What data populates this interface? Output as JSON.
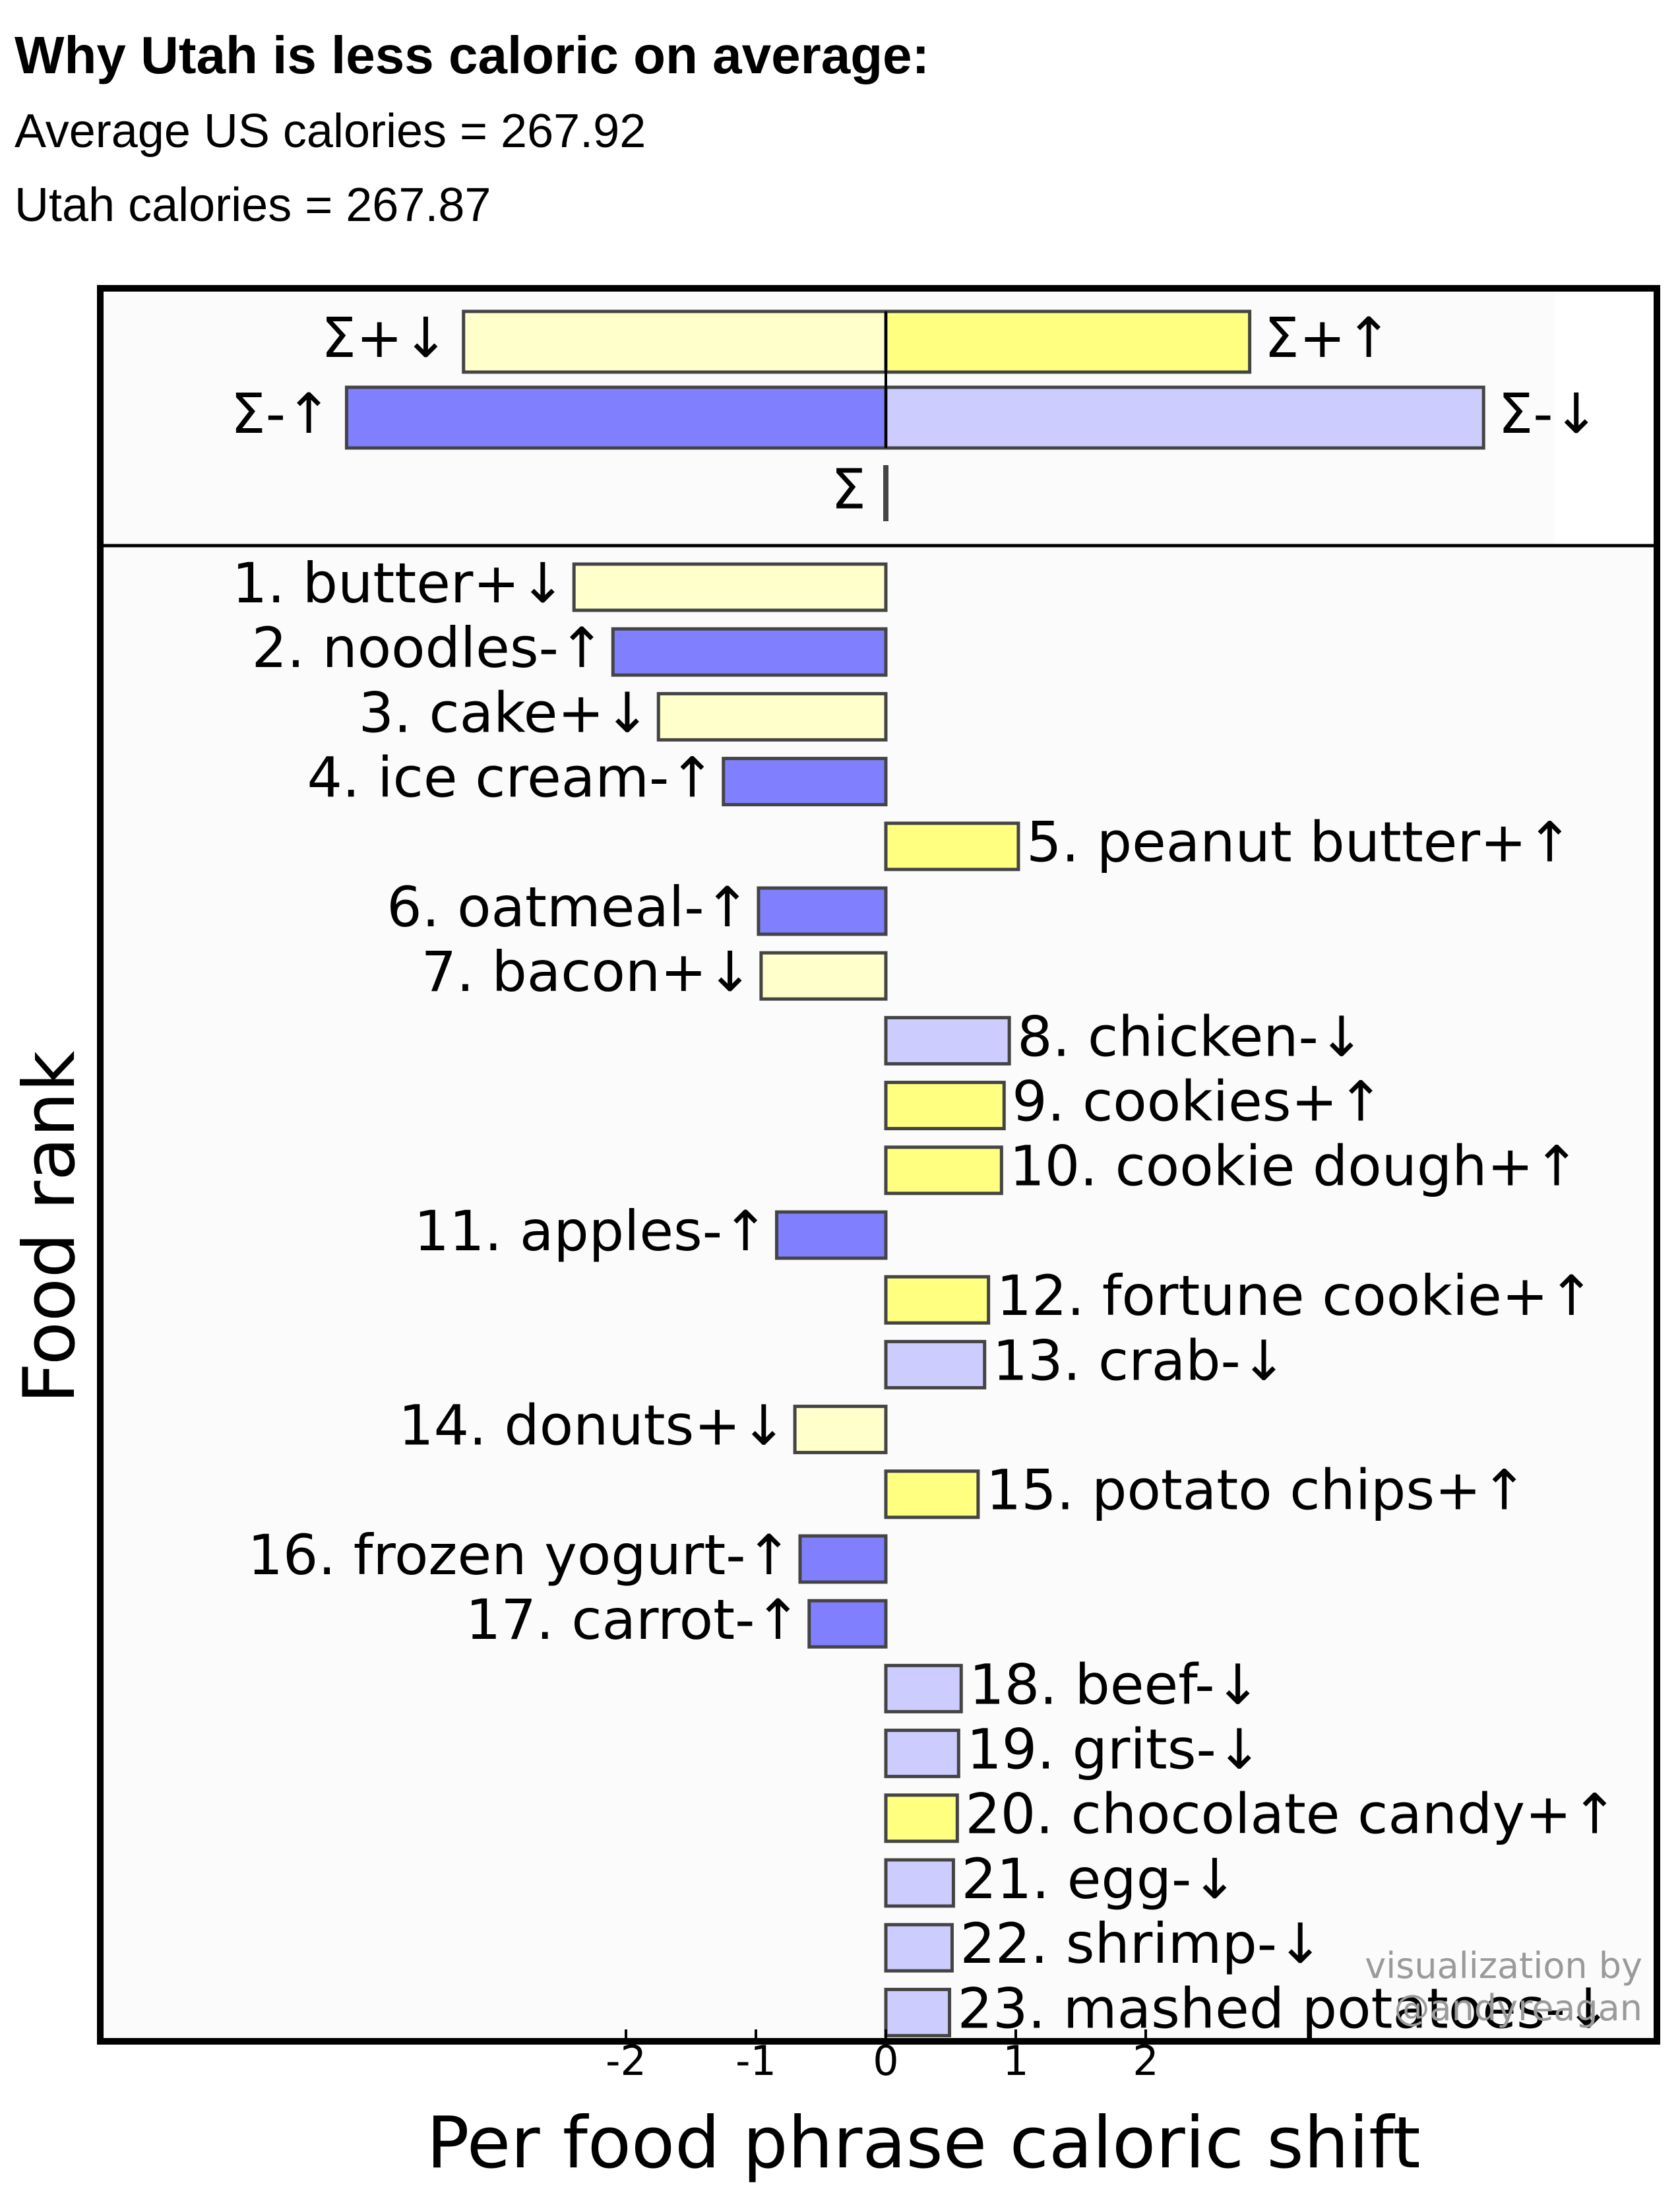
{
  "header": {
    "title": "Why Utah is less caloric on average:",
    "subtitle_us": "Average US calories = 267.92",
    "subtitle_utah": "Utah calories = 267.87"
  },
  "watermark": [
    "visualization by",
    "@andyreagan"
  ],
  "colors": {
    "plus_up": "#ffff80",
    "plus_down": "#ffffcc",
    "minus_up": "#8080ff",
    "minus_down": "#ccccff",
    "panel_bg": "#fbfbfb",
    "bar_stroke": "#444444"
  },
  "chart_data": [
    {
      "type": "bar",
      "orientation": "horizontal",
      "label": "summary",
      "series": [
        {
          "name": "Σ+↓",
          "value": -3.25,
          "row": 0
        },
        {
          "name": "Σ+↑",
          "value": 2.8,
          "row": 0
        },
        {
          "name": "Σ-↑",
          "value": -4.15,
          "row": 1
        },
        {
          "name": "Σ-↓",
          "value": 4.6,
          "row": 1
        },
        {
          "name": "Σ",
          "value": 0.0,
          "row": 2
        }
      ]
    },
    {
      "type": "bar",
      "orientation": "horizontal",
      "xlabel": "Per food phrase caloric shift",
      "ylabel": "Food rank",
      "xlim": [
        -3.1,
        4.1
      ],
      "xticks": [
        -2,
        -1,
        0,
        1,
        2
      ],
      "grid": false,
      "bars": [
        {
          "label": "1. butter+↓",
          "value": -2.4,
          "kind": "plus_down"
        },
        {
          "label": "2. noodles-↑",
          "value": -2.1,
          "kind": "minus_up"
        },
        {
          "label": "3. cake+↓",
          "value": -1.75,
          "kind": "plus_down"
        },
        {
          "label": "4. ice cream-↑",
          "value": -1.25,
          "kind": "minus_up"
        },
        {
          "label": "5. peanut butter+↑",
          "value": 1.02,
          "kind": "plus_up"
        },
        {
          "label": "6. oatmeal-↑",
          "value": -0.98,
          "kind": "minus_up"
        },
        {
          "label": "7. bacon+↓",
          "value": -0.96,
          "kind": "plus_down"
        },
        {
          "label": "8. chicken-↓",
          "value": 0.95,
          "kind": "minus_down"
        },
        {
          "label": "9. cookies+↑",
          "value": 0.91,
          "kind": "plus_up"
        },
        {
          "label": "10. cookie dough+↑",
          "value": 0.89,
          "kind": "plus_up"
        },
        {
          "label": "11. apples-↑",
          "value": -0.84,
          "kind": "minus_up"
        },
        {
          "label": "12. fortune cookie+↑",
          "value": 0.79,
          "kind": "plus_up"
        },
        {
          "label": "13. crab-↓",
          "value": 0.76,
          "kind": "minus_down"
        },
        {
          "label": "14. donuts+↓",
          "value": -0.7,
          "kind": "plus_down"
        },
        {
          "label": "15. potato chips+↑",
          "value": 0.71,
          "kind": "plus_up"
        },
        {
          "label": "16. frozen yogurt-↑",
          "value": -0.66,
          "kind": "minus_up"
        },
        {
          "label": "17. carrot-↑",
          "value": -0.59,
          "kind": "minus_up"
        },
        {
          "label": "18. beef-↓",
          "value": 0.58,
          "kind": "minus_down"
        },
        {
          "label": "19. grits-↓",
          "value": 0.56,
          "kind": "minus_down"
        },
        {
          "label": "20. chocolate candy+↑",
          "value": 0.55,
          "kind": "plus_up"
        },
        {
          "label": "21. egg-↓",
          "value": 0.52,
          "kind": "minus_down"
        },
        {
          "label": "22. shrimp-↓",
          "value": 0.51,
          "kind": "minus_down"
        },
        {
          "label": "23. mashed potatoes-↓",
          "value": 0.49,
          "kind": "minus_down"
        }
      ]
    }
  ]
}
